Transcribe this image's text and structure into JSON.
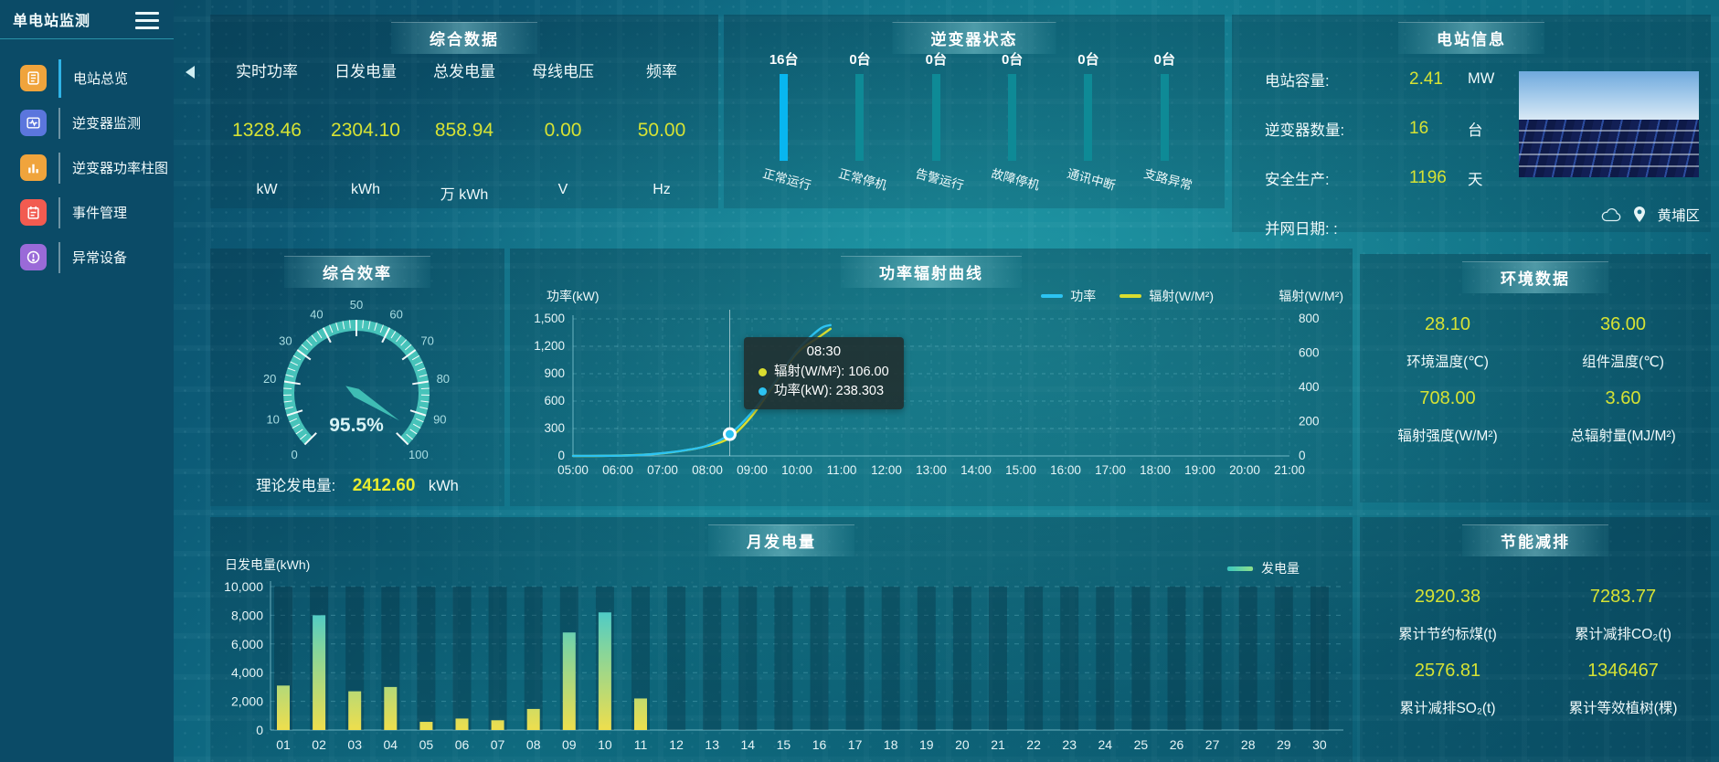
{
  "sidebar": {
    "title": "单电站监测",
    "items": [
      {
        "label": "电站总览",
        "icon": "station-overview-icon",
        "icon_bg": "#f0a43c",
        "active": true
      },
      {
        "label": "逆变器监测",
        "icon": "inverter-monitor-icon",
        "icon_bg": "#5b76dd",
        "active": false
      },
      {
        "label": "逆变器功率柱图",
        "icon": "inverter-power-chart-icon",
        "icon_bg": "#f0a43c",
        "active": false
      },
      {
        "label": "事件管理",
        "icon": "event-management-icon",
        "icon_bg": "#f25b50",
        "active": false
      },
      {
        "label": "异常设备",
        "icon": "abnormal-device-icon",
        "icon_bg": "#9a6ad8",
        "active": false
      }
    ]
  },
  "panels": {
    "summary": {
      "title": "综合数据",
      "metrics": [
        {
          "label": "实时功率",
          "value": "1328.46",
          "unit": "kW"
        },
        {
          "label": "日发电量",
          "value": "2304.10",
          "unit": "kWh"
        },
        {
          "label": "总发电量",
          "value": "858.94",
          "unit": "万 kWh"
        },
        {
          "label": "母线电压",
          "value": "0.00",
          "unit": "V"
        },
        {
          "label": "频率",
          "value": "50.00",
          "unit": "Hz"
        }
      ]
    },
    "inverter_status": {
      "title": "逆变器状态",
      "bars": [
        {
          "count": "16台",
          "label": "正常运行",
          "color": "#08b6f0"
        },
        {
          "count": "0台",
          "label": "正常停机",
          "color": "#0e8a96"
        },
        {
          "count": "0台",
          "label": "告警运行",
          "color": "#0e8a96"
        },
        {
          "count": "0台",
          "label": "故障停机",
          "color": "#0e8a96"
        },
        {
          "count": "0台",
          "label": "通讯中断",
          "color": "#0e8a96"
        },
        {
          "count": "0台",
          "label": "支路异常",
          "color": "#0e8a96"
        }
      ]
    },
    "station_info": {
      "title": "电站信息",
      "rows": [
        {
          "label": "电站容量:",
          "value": "2.41",
          "unit": "MW"
        },
        {
          "label": "逆变器数量:",
          "value": "16",
          "unit": "台"
        },
        {
          "label": "安全生产:",
          "value": "1196",
          "unit": "天"
        },
        {
          "label": "并网日期: :",
          "value": "",
          "unit": ""
        }
      ],
      "district": "黄埔区"
    },
    "environment": {
      "title": "环境数据",
      "metrics": [
        {
          "value": "28.10",
          "label": "环境温度(℃)"
        },
        {
          "value": "36.00",
          "label": "组件温度(℃)"
        },
        {
          "value": "708.00",
          "label": "辐射强度(W/M²)"
        },
        {
          "value": "3.60",
          "label": "总辐射量(MJ/M²)"
        }
      ]
    },
    "energy_saving": {
      "title": "节能减排",
      "metrics": [
        {
          "value": "2920.38",
          "label": "累计节约标煤(t)"
        },
        {
          "value": "7283.77",
          "label": "累计减排CO₂(t)"
        },
        {
          "value": "2576.81",
          "label": "累计减排SO₂(t)"
        },
        {
          "value": "1346467",
          "label": "累计等效植树(棵)"
        }
      ]
    }
  },
  "chart_data": [
    {
      "id": "efficiency_gauge",
      "type": "gauge",
      "title": "综合效率",
      "value": 95.5,
      "display": "95.5%",
      "min": 0,
      "max": 100,
      "tick_labels": [
        "0",
        "10",
        "20",
        "30",
        "40",
        "50",
        "60",
        "70",
        "80",
        "90",
        "100"
      ],
      "footer": {
        "label": "理论发电量:",
        "value": "2412.60",
        "unit": "kWh"
      },
      "colors": {
        "ring": "#47c3ba",
        "needle": "#3fbdb4",
        "value_text": "#d8f2f4",
        "tick_label": "#a9dde2"
      }
    },
    {
      "id": "power_radiation",
      "type": "line",
      "title": "功率辐射曲线",
      "x_range": [
        5,
        21
      ],
      "x_ticks": [
        "05:00",
        "06:00",
        "07:00",
        "08:00",
        "09:00",
        "10:00",
        "11:00",
        "12:00",
        "13:00",
        "14:00",
        "15:00",
        "16:00",
        "17:00",
        "18:00",
        "19:00",
        "20:00",
        "21:00"
      ],
      "left_axis": {
        "title": "功率(kW)",
        "min": 0,
        "max": 1500,
        "ticks": [
          "0",
          "300",
          "600",
          "900",
          "1,200",
          "1,500"
        ]
      },
      "right_axis": {
        "title": "辐射(W/M²)",
        "min": 0,
        "max": 800,
        "ticks": [
          "0",
          "200",
          "400",
          "600",
          "800"
        ]
      },
      "legend": [
        {
          "name": "功率",
          "color": "#2cc3f2"
        },
        {
          "name": "辐射(W/M²)",
          "color": "#d9dd30"
        }
      ],
      "series": [
        {
          "name": "辐射(W/M²)",
          "axis": "right",
          "color": "#d9dd30",
          "x": [
            5,
            5.5,
            6,
            6.5,
            7,
            7.5,
            8,
            8.5,
            9,
            9.5,
            10,
            10.5,
            10.75
          ],
          "y": [
            0,
            0,
            2,
            6,
            15,
            32,
            58,
            106,
            235,
            420,
            600,
            695,
            742
          ]
        },
        {
          "name": "功率",
          "axis": "left",
          "color": "#2cc3f2",
          "x": [
            5,
            5.5,
            6,
            6.5,
            7,
            7.5,
            8,
            8.5,
            9,
            9.5,
            10,
            10.5,
            10.75
          ],
          "y": [
            0,
            1,
            3,
            10,
            30,
            62,
            112,
            238.3,
            480,
            800,
            1150,
            1385,
            1432
          ]
        }
      ],
      "crosshair_x": 8.5,
      "highlight": {
        "series": "功率",
        "x": 8.5,
        "y": 238.303,
        "color": "#2cc3f2"
      },
      "tooltip": {
        "title": "08:30",
        "entries": [
          {
            "text": "辐射(W/M²): 106.00",
            "color": "#d9dd30"
          },
          {
            "text": "功率(kW): 238.303",
            "color": "#2cc3f2"
          }
        ]
      }
    },
    {
      "id": "monthly_energy",
      "type": "bar",
      "title": "月发电量",
      "ylabel": "日发电量(kWh)",
      "ylim": [
        0,
        10000
      ],
      "yticks": [
        "0",
        "2,000",
        "4,000",
        "6,000",
        "8,000",
        "10,000"
      ],
      "categories": [
        "01",
        "02",
        "03",
        "04",
        "05",
        "06",
        "07",
        "08",
        "09",
        "10",
        "11",
        "12",
        "13",
        "14",
        "15",
        "16",
        "17",
        "18",
        "19",
        "20",
        "21",
        "22",
        "23",
        "24",
        "25",
        "26",
        "27",
        "28",
        "29",
        "30"
      ],
      "values": [
        3100,
        8000,
        2700,
        3000,
        570,
        800,
        680,
        1470,
        6800,
        8200,
        2200,
        0,
        0,
        0,
        0,
        0,
        0,
        0,
        0,
        0,
        0,
        0,
        0,
        0,
        0,
        0,
        0,
        0,
        0,
        0
      ],
      "legend": [
        {
          "name": "发电量",
          "color_start": "#3bc8c0",
          "color_end": "#8ee08a"
        }
      ],
      "bar_gradient": [
        "#eede4d",
        "#86d59b",
        "#2ac4e4"
      ]
    },
    {
      "id": "inverter_status",
      "type": "bar",
      "title": "逆变器状态",
      "categories": [
        "正常运行",
        "正常停机",
        "告警运行",
        "故障停机",
        "通讯中断",
        "支路异常"
      ],
      "values": [
        16,
        0,
        0,
        0,
        0,
        0
      ]
    }
  ]
}
